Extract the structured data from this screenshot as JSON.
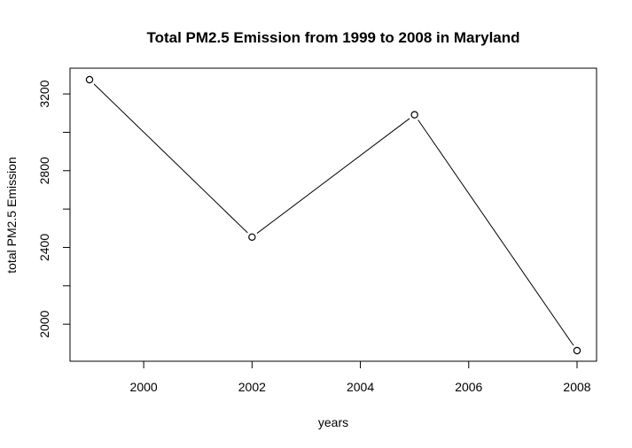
{
  "chart_data": {
    "type": "line",
    "title": "Total PM2.5 Emission from 1999 to 2008 in Maryland",
    "xlabel": "years",
    "ylabel": "total PM2.5 Emission",
    "x": [
      1999,
      2002,
      2005,
      2008
    ],
    "series": [
      {
        "values": [
          3274.2,
          2453.9,
          3091.4,
          1862.3
        ]
      }
    ],
    "xlim": [
      1999,
      2008
    ],
    "ylim": [
      1862.3,
      3274.2
    ],
    "xticks": [
      2000,
      2002,
      2004,
      2006,
      2008
    ],
    "yticks": [
      2000,
      2400,
      2800,
      3200
    ],
    "xtick_labels": [
      "2000",
      "2002",
      "2004",
      "2006",
      "2008"
    ],
    "ytick_labels": [
      "2000",
      "2400",
      "2800",
      "3200"
    ],
    "grid": false,
    "marker": "open-circle",
    "line_color": "#000000"
  }
}
